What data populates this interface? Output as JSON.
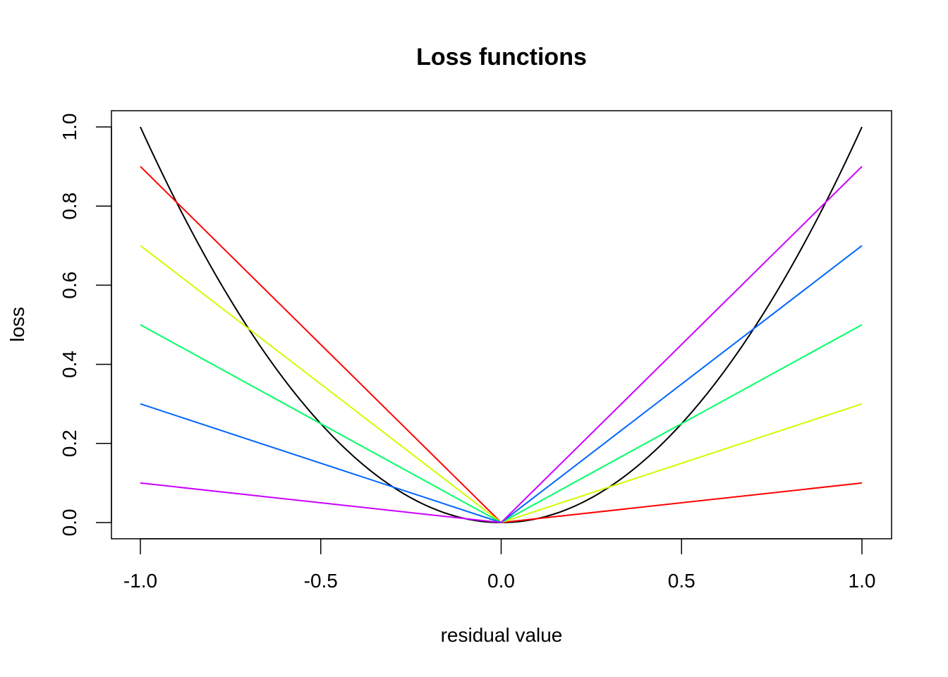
{
  "chart_data": {
    "type": "line",
    "title": "Loss functions",
    "xlabel": "residual value",
    "ylabel": "loss",
    "xlim": [
      -1.0,
      1.0
    ],
    "ylim": [
      0.0,
      1.0
    ],
    "x_ticks": [
      "-1.0",
      "-0.5",
      "0.0",
      "0.5",
      "1.0"
    ],
    "y_ticks": [
      "0.0",
      "0.2",
      "0.4",
      "0.6",
      "0.8",
      "1.0"
    ],
    "grid": false,
    "legend": "none",
    "series": [
      {
        "color": "#000000",
        "kind": "quadratic",
        "x": [
          -1.0,
          -0.5,
          0.0,
          0.5,
          1.0
        ],
        "y": [
          1.0,
          0.25,
          0.0,
          0.25,
          1.0
        ]
      },
      {
        "color": "#FF0000",
        "x": [
          -1.0,
          0.0,
          1.0
        ],
        "y": [
          0.9,
          0.0,
          0.1
        ]
      },
      {
        "color": "#CCFF00",
        "x": [
          -1.0,
          0.0,
          1.0
        ],
        "y": [
          0.7,
          0.0,
          0.3
        ]
      },
      {
        "color": "#00FF66",
        "x": [
          -1.0,
          0.0,
          1.0
        ],
        "y": [
          0.5,
          0.0,
          0.5
        ]
      },
      {
        "color": "#0066FF",
        "x": [
          -1.0,
          0.0,
          1.0
        ],
        "y": [
          0.3,
          0.0,
          0.7
        ]
      },
      {
        "color": "#CC00FF",
        "x": [
          -1.0,
          0.0,
          1.0
        ],
        "y": [
          0.1,
          0.0,
          0.9
        ]
      }
    ]
  }
}
